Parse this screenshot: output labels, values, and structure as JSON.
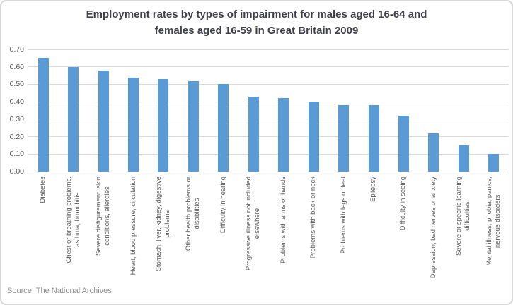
{
  "source": "Source: The National Archives",
  "colors": {
    "bar": "#5B9BD5",
    "gridline": "#D9D9D9",
    "axis_text": "#595959",
    "title_text": "#404049",
    "source_text": "#8C8C8C",
    "frame_border": "#D9D9D9"
  },
  "chart_data": {
    "type": "bar",
    "title": "Employment rates by types of impairment for males aged 16-64 and\nfemales aged 16-59 in Great Britain 2009",
    "xlabel": "",
    "ylabel": "",
    "ylim": [
      0,
      0.7
    ],
    "ytick_step": 0.1,
    "yticks": [
      "0.70",
      "0.60",
      "0.50",
      "0.40",
      "0.30",
      "0.20",
      "0.10",
      "0.00"
    ],
    "grid": true,
    "legend": false,
    "categories": [
      "Diabetes",
      "Chest or breathing problems,\nasthma, bronchitis",
      "Severe disfigurement, skin\nconditions, allergies",
      "Heart, blood pressure, circulation",
      "Stomach, liver, kidney, digestive\nproblems",
      "Other health problems or\ndisabilities",
      "Difficulty in hearing",
      "Progressive illness not included\nelsewhere",
      "Problems with arms or hands",
      "Problems with back or neck",
      "Problems with legs or feet",
      "Epilepsy",
      "Difficulty in seeing",
      "Depression, bad nerves or anxiety",
      "Severe or specific learning\ndifficulties",
      "Mental illness, phobia, panics,\nnervous disorders"
    ],
    "values": [
      0.65,
      0.6,
      0.58,
      0.54,
      0.53,
      0.52,
      0.5,
      0.43,
      0.42,
      0.4,
      0.38,
      0.38,
      0.32,
      0.22,
      0.15,
      0.1
    ]
  }
}
